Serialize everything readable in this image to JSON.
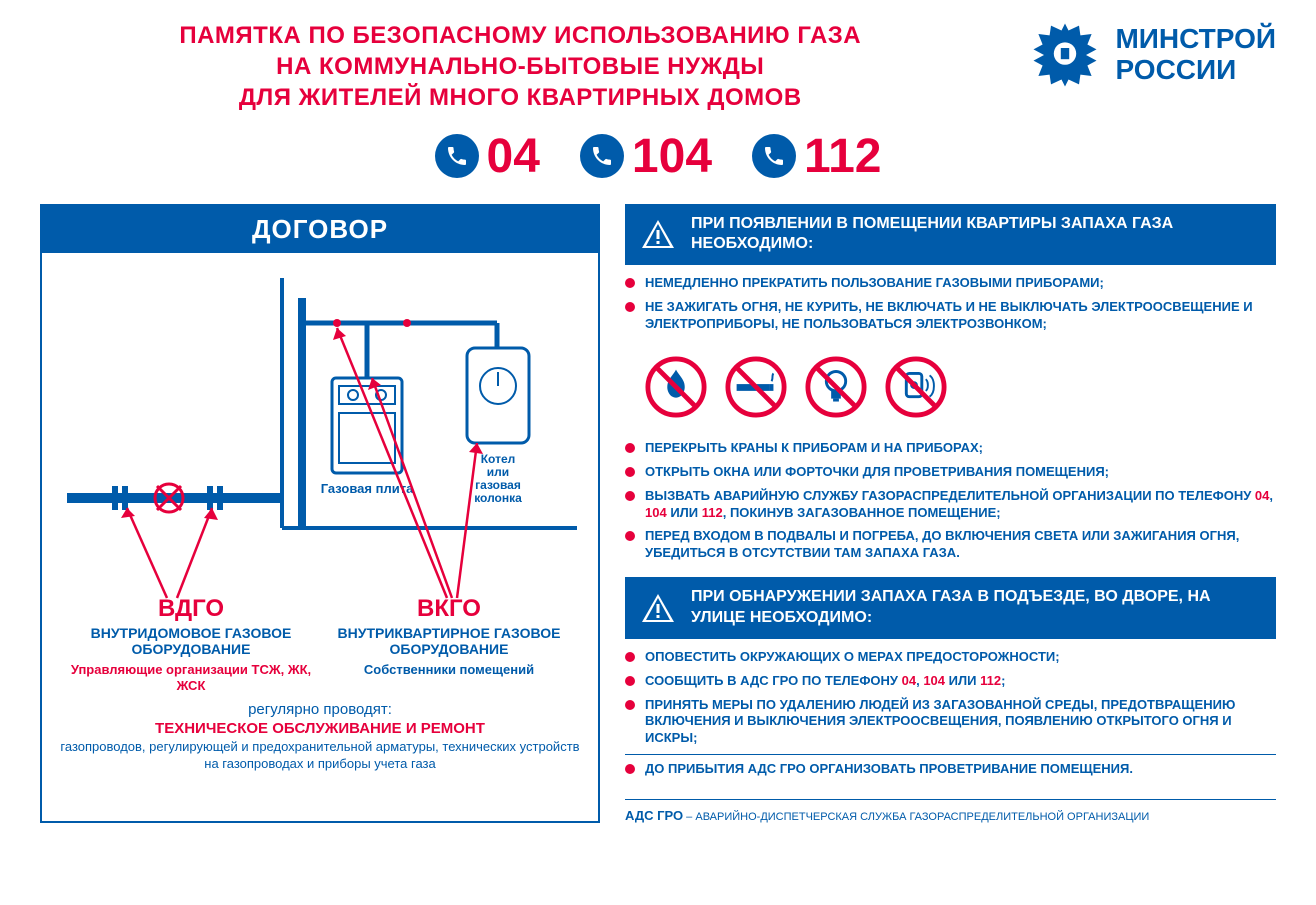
{
  "colors": {
    "red": "#e6003c",
    "blue": "#005baa",
    "white": "#ffffff"
  },
  "header": {
    "title_line1": "ПАМЯТКА ПО БЕЗОПАСНОМУ ИСПОЛЬЗОВАНИЮ ГАЗА",
    "title_line2": "НА КОММУНАЛЬНО-БЫТОВЫЕ НУЖДЫ",
    "title_line3": "ДЛЯ ЖИТЕЛЕЙ МНОГО КВАРТИРНЫХ ДОМОВ",
    "ministry_line1": "МИНСТРОЙ",
    "ministry_line2": "РОССИИ"
  },
  "phones": [
    "04",
    "104",
    "112"
  ],
  "left": {
    "header": "ДОГОВОР",
    "diagram_labels": {
      "boiler": "Котел или газовая колонка",
      "stove": "Газовая плита"
    },
    "vdgo": {
      "abbr": "ВДГО",
      "desc1": "ВНУТРИДОМОВОЕ ГАЗОВОЕ ОБОРУДОВАНИЕ",
      "desc2": "Управляющие организации ТСЖ, ЖК, ЖСК"
    },
    "vkgo": {
      "abbr": "ВКГО",
      "desc1": "ВНУТРИКВАРТИРНОЕ ГАЗОВОЕ ОБОРУДОВАНИЕ",
      "desc2": "Собственники помещений"
    },
    "bottom": {
      "line1": "регулярно проводят:",
      "line2": "ТЕХНИЧЕСКОЕ ОБСЛУЖИВАНИЕ И РЕМОНТ",
      "line3": "газопроводов, регулирующей и предохранительной арматуры, технических устройств на газопроводах и приборы учета газа"
    }
  },
  "right": {
    "warn1": "ПРИ ПОЯВЛЕНИИ В ПОМЕЩЕНИИ КВАРТИРЫ ЗАПАХА ГАЗА НЕОБХОДИМО:",
    "list1": [
      "НЕМЕДЛЕННО ПРЕКРАТИТЬ ПОЛЬЗОВАНИЕ ГАЗОВЫМИ ПРИБОРАМИ;",
      "НЕ ЗАЖИГАТЬ ОГНЯ, НЕ КУРИТЬ, НЕ ВКЛЮЧАТЬ И НЕ ВЫКЛЮЧАТЬ ЭЛЕКТРООСВЕЩЕНИЕ И ЭЛЕКТРОПРИБОРЫ, НЕ ПОЛЬЗОВАТЬСЯ  ЭЛЕКТРОЗВОНКОМ;"
    ],
    "prohibitions": [
      "no-fire-icon",
      "no-smoking-icon",
      "no-light-icon",
      "no-doorbell-icon"
    ],
    "list2": [
      {
        "text": "ПЕРЕКРЫТЬ КРАНЫ К ПРИБОРАМ И НА ПРИБОРАХ;"
      },
      {
        "text": "ОТКРЫТЬ ОКНА ИЛИ ФОРТОЧКИ ДЛЯ ПРОВЕТРИВАНИЯ ПОМЕЩЕНИЯ;"
      },
      {
        "html": "ВЫЗВАТЬ АВАРИЙНУЮ СЛУЖБУ ГАЗОРАСПРЕДЕЛИТЕЛЬНОЙ ОРГАНИЗАЦИИ ПО ТЕЛЕФОНУ <span class='red'>04</span>, <span class='red'>104</span> ИЛИ <span class='red'>112</span>, ПОКИНУВ ЗАГАЗОВАННОЕ  ПОМЕЩЕНИЕ;"
      },
      {
        "text": "ПЕРЕД ВХОДОМ В ПОДВАЛЫ И ПОГРЕБА, ДО ВКЛЮЧЕНИЯ СВЕТА ИЛИ ЗАЖИГАНИЯ ОГНЯ, УБЕДИТЬСЯ В ОТСУТСТВИИ ТАМ ЗАПАХА ГАЗА."
      }
    ],
    "warn2": "ПРИ ОБНАРУЖЕНИИ ЗАПАХА ГАЗА В ПОДЪЕЗДЕ, ВО ДВОРЕ, НА УЛИЦЕ  НЕОБХОДИМО:",
    "list3": [
      {
        "text": "ОПОВЕСТИТЬ ОКРУЖАЮЩИХ О МЕРАХ ПРЕДОСТОРОЖНОСТИ;"
      },
      {
        "html": "СООБЩИТЬ В АДС ГРО ПО ТЕЛЕФОНУ <span class='red'>04</span>, <span class='red'>104</span> ИЛИ <span class='red'>112</span>;"
      },
      {
        "text": "ПРИНЯТЬ МЕРЫ ПО УДАЛЕНИЮ ЛЮДЕЙ ИЗ ЗАГАЗОВАННОЙ СРЕДЫ, ПРЕДОТВРАЩЕНИЮ ВКЛЮЧЕНИЯ И ВЫКЛЮЧЕНИЯ ЭЛЕКТРООСВЕЩЕНИЯ, ПОЯВЛЕНИЮ ОТКРЫТОГО ОГНЯ И ИСКРЫ;"
      },
      {
        "text": "ДО ПРИБЫТИЯ АДС ГРО ОРГАНИЗОВАТЬ ПРОВЕТРИВАНИЕ ПОМЕЩЕНИЯ."
      }
    ],
    "footer_abbr": "АДС ГРО",
    "footer_text": " – АВАРИЙНО-ДИСПЕТЧЕРСКАЯ СЛУЖБА ГАЗОРАСПРЕДЕЛИТЕЛЬНОЙ ОРГАНИЗАЦИИ"
  }
}
